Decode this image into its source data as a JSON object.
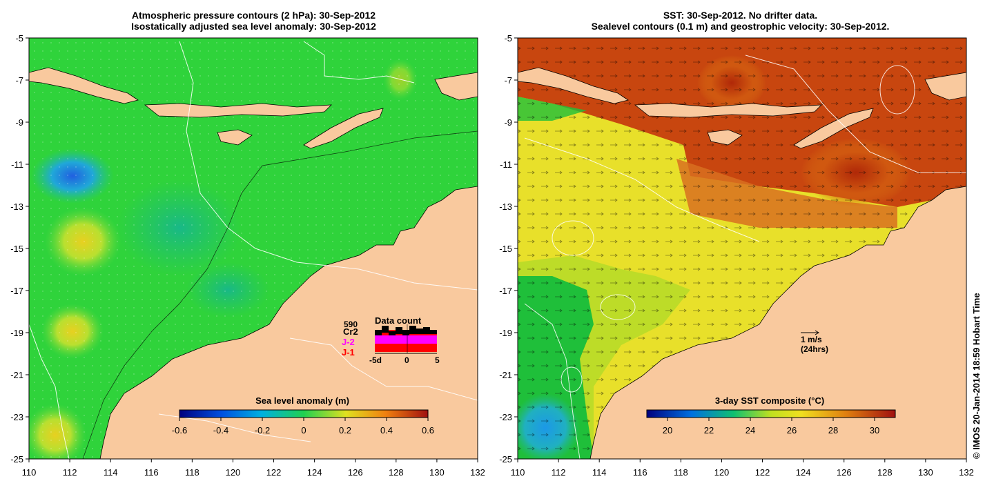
{
  "left_panel": {
    "title_line1": "Atmospheric pressure contours (2 hPa): 30-Sep-2012",
    "title_line2": "Isostatically adjusted sea level anomaly: 30-Sep-2012",
    "colorbar_title": "Sea level anomaly (m)",
    "colorbar_ticks": [
      "-0.6",
      "-0.4",
      "-0.2",
      "0",
      "0.2",
      "0.4",
      "0.6"
    ],
    "data_count": {
      "title": "Data count",
      "total": "590",
      "satellites": [
        {
          "label": "Cr2",
          "color": "#000000"
        },
        {
          "label": "J-2",
          "color": "#ff00ff"
        },
        {
          "label": "J-1",
          "color": "#ff0000"
        }
      ],
      "axis_ticks": [
        "-5d",
        "0",
        "5"
      ]
    }
  },
  "right_panel": {
    "title_line1": "SST: 30-Sep-2012. No drifter data.",
    "title_line2": "Sealevel contours (0.1 m) and geostrophic velocity: 30-Sep-2012.",
    "colorbar_title": "3-day SST composite (°C)",
    "colorbar_ticks": [
      "20",
      "22",
      "24",
      "26",
      "28",
      "30"
    ],
    "velocity_scale_label": "1 m/s",
    "velocity_scale_sublabel": "(24hrs)"
  },
  "axes": {
    "x_ticks": [
      "110",
      "112",
      "114",
      "116",
      "118",
      "120",
      "122",
      "124",
      "126",
      "128",
      "130",
      "132"
    ],
    "y_ticks": [
      "-5",
      "-7",
      "-9",
      "-11",
      "-13",
      "-15",
      "-17",
      "-19",
      "-21",
      "-23",
      "-25"
    ]
  },
  "credit": "© IMOS 20-Jan-2014 18:59 Hobart Time",
  "colors": {
    "land": "#f9c99e",
    "sla_ocean": "#2fd33b",
    "sst_warm": "#c8460f",
    "sst_mid": "#e8e02a",
    "sst_cool": "#1fbf3a",
    "sst_cold": "#2aa6e0"
  }
}
